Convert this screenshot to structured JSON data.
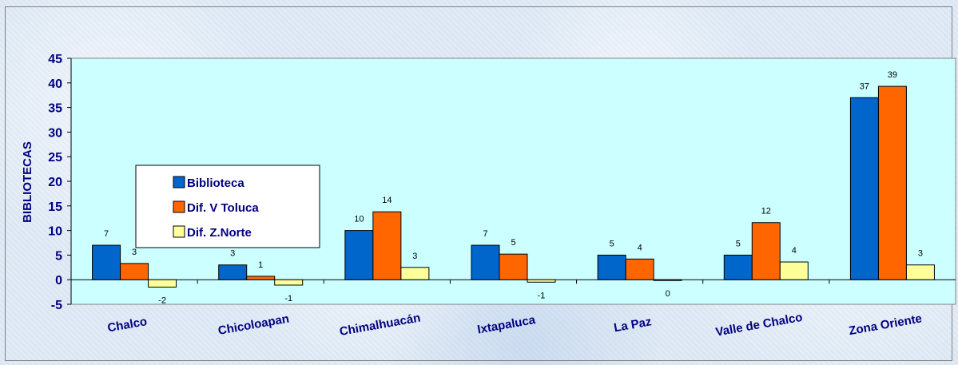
{
  "chart_data": {
    "type": "bar",
    "title": "",
    "xlabel": "",
    "ylabel": "BIBLIOTECAS",
    "ylim": [
      -5,
      45
    ],
    "yticks": [
      -5,
      0,
      5,
      10,
      15,
      20,
      25,
      30,
      35,
      40,
      45
    ],
    "grid": false,
    "legend_position": "left",
    "categories": [
      "Chalco",
      "Chicoloapan",
      "Chimalhuacán",
      "Ixtapaluca",
      "La Paz",
      "Valle de Chalco",
      "Zona Oriente"
    ],
    "series": [
      {
        "name": "Biblioteca",
        "color": "#0066cc",
        "values": [
          7,
          3,
          10,
          7,
          5,
          5,
          37
        ],
        "labels": [
          "7",
          "3",
          "10",
          "7",
          "5",
          "5",
          "37"
        ]
      },
      {
        "name": "Dif. V Toluca",
        "color": "#ff6600",
        "values": [
          3.3,
          0.7,
          13.8,
          5.2,
          4.2,
          11.6,
          39.3
        ],
        "labels": [
          "3",
          "1",
          "14",
          "5",
          "4",
          "12",
          "39"
        ]
      },
      {
        "name": "Dif. Z.Norte",
        "color": "#ffff99",
        "values": [
          -1.5,
          -1.1,
          2.5,
          -0.5,
          -0.1,
          3.6,
          3.0
        ],
        "labels": [
          "-2",
          "-1",
          "3",
          "-1",
          "0",
          "4",
          "3"
        ]
      }
    ]
  },
  "colors": {
    "plot_background": "#ccffff",
    "axis": "#000000",
    "text": "#000080"
  }
}
